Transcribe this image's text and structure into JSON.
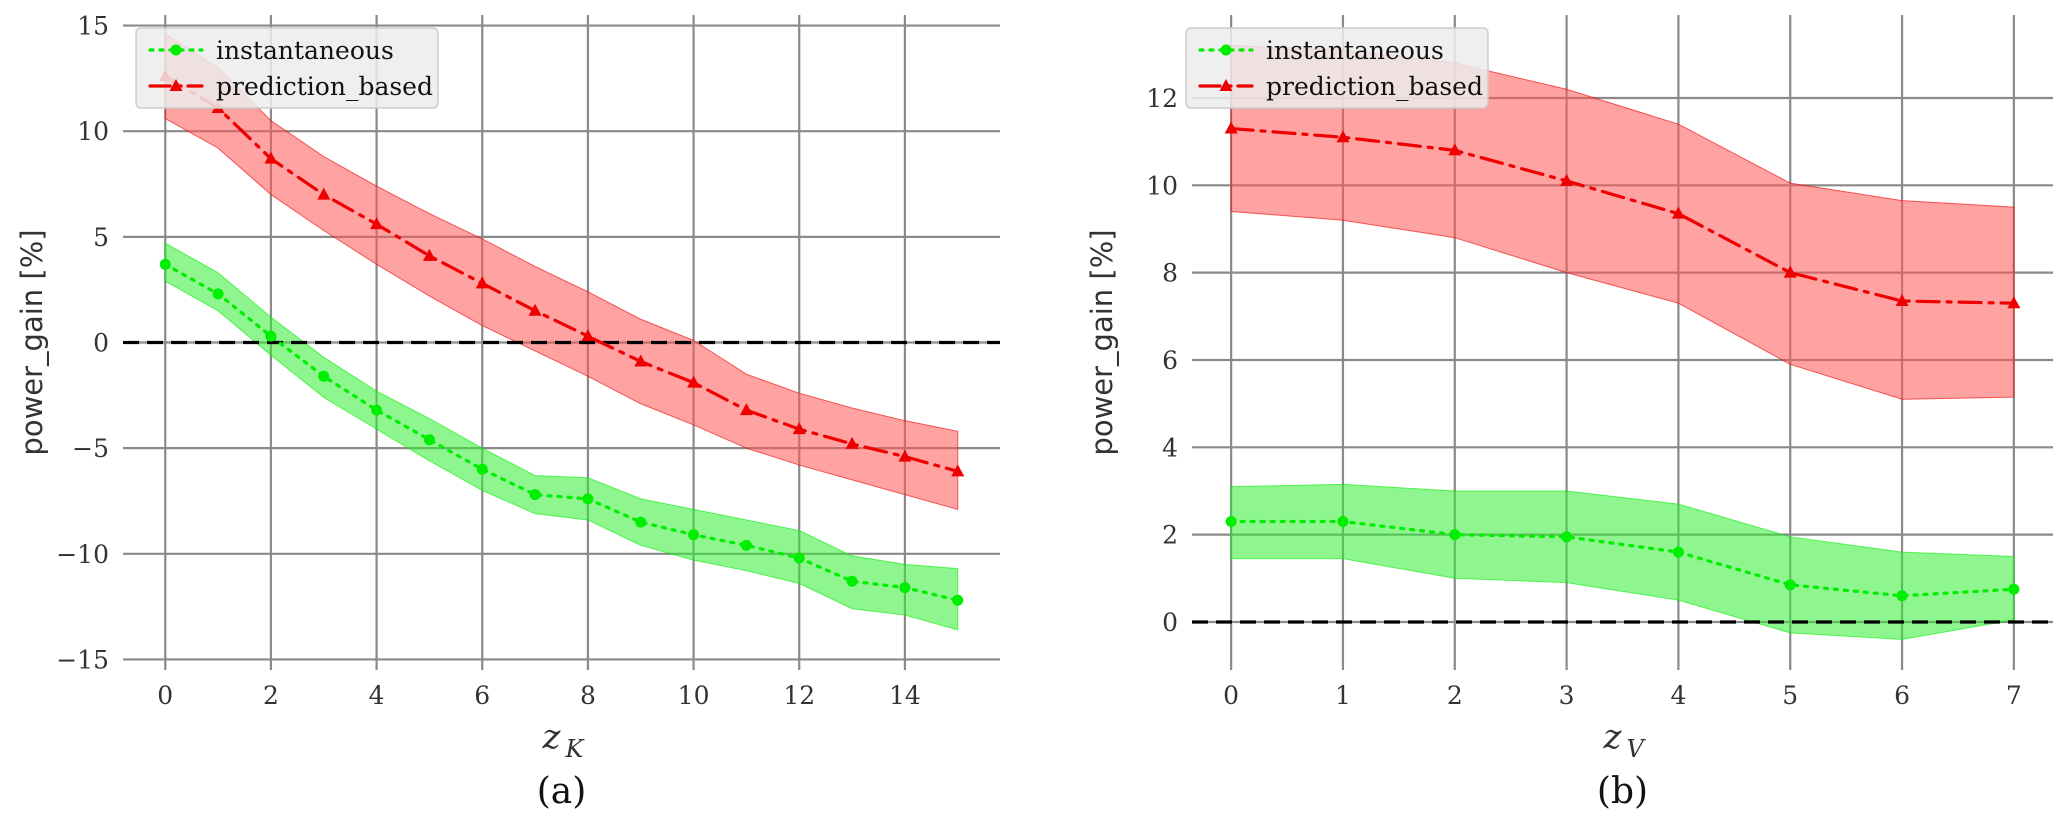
{
  "chart_data": [
    {
      "type": "line",
      "caption": "(a)",
      "xlabel": "z",
      "xlabel_subscript": "K",
      "ylabel": "power_gain [%]",
      "xlim": [
        -0.8,
        15.8
      ],
      "ylim": [
        -15.5,
        15.5
      ],
      "xticks": [
        0,
        2,
        4,
        6,
        8,
        10,
        12,
        14
      ],
      "yticks": [
        -15,
        -10,
        -5,
        0,
        5,
        10,
        15
      ],
      "ytick_labels": [
        "−15",
        "−10",
        "−5",
        "0",
        "5",
        "10",
        "15"
      ],
      "grid": true,
      "reference_line": 0,
      "legend": "top-left",
      "x": [
        0,
        1,
        2,
        3,
        4,
        5,
        6,
        7,
        8,
        9,
        10,
        11,
        12,
        13,
        14,
        15
      ],
      "series": [
        {
          "name": "instantaneous",
          "color": "#00ee00",
          "band_color": "#33ee33",
          "style": "dotted",
          "marker": "circle",
          "values": [
            3.7,
            2.3,
            0.3,
            -1.6,
            -3.2,
            -4.6,
            -6.0,
            -7.2,
            -7.4,
            -8.5,
            -9.1,
            -9.6,
            -10.2,
            -11.3,
            -11.6,
            -12.2
          ],
          "lower": [
            2.9,
            1.5,
            -0.6,
            -2.6,
            -4.1,
            -5.6,
            -7.0,
            -8.1,
            -8.4,
            -9.6,
            -10.3,
            -10.8,
            -11.4,
            -12.6,
            -12.9,
            -13.6
          ],
          "upper": [
            4.7,
            3.3,
            1.2,
            -0.7,
            -2.3,
            -3.6,
            -5.0,
            -6.3,
            -6.4,
            -7.4,
            -7.9,
            -8.4,
            -8.9,
            -10.1,
            -10.5,
            -10.7
          ]
        },
        {
          "name": "prediction_based",
          "color": "#ee0000",
          "band_color": "#ff5555",
          "style": "dashdot",
          "marker": "triangle",
          "values": [
            12.6,
            11.1,
            8.7,
            7.0,
            5.6,
            4.1,
            2.8,
            1.5,
            0.3,
            -0.9,
            -1.9,
            -3.2,
            -4.1,
            -4.8,
            -5.4,
            -6.1
          ],
          "lower": [
            10.6,
            9.2,
            7.0,
            5.3,
            3.7,
            2.2,
            0.8,
            -0.4,
            -1.6,
            -2.9,
            -3.9,
            -5.0,
            -5.8,
            -6.5,
            -7.2,
            -7.9
          ],
          "upper": [
            14.6,
            13.0,
            10.5,
            8.8,
            7.4,
            6.1,
            4.9,
            3.6,
            2.4,
            1.1,
            0.1,
            -1.5,
            -2.4,
            -3.1,
            -3.7,
            -4.2
          ]
        }
      ]
    },
    {
      "type": "line",
      "caption": "(b)",
      "xlabel": "z",
      "xlabel_subscript": "V",
      "ylabel": "power_gain [%]",
      "xlim": [
        -0.35,
        7.35
      ],
      "ylim": [
        -1.1,
        13.9
      ],
      "xticks": [
        0,
        1,
        2,
        3,
        4,
        5,
        6,
        7
      ],
      "yticks": [
        0,
        2,
        4,
        6,
        8,
        10,
        12
      ],
      "ytick_labels": [
        "0",
        "2",
        "4",
        "6",
        "8",
        "10",
        "12"
      ],
      "grid": true,
      "reference_line": 0,
      "legend": "top-left",
      "x": [
        0,
        1,
        2,
        3,
        4,
        5,
        6,
        7
      ],
      "series": [
        {
          "name": "instantaneous",
          "color": "#00ee00",
          "band_color": "#33ee33",
          "style": "dotted",
          "marker": "circle",
          "values": [
            2.3,
            2.3,
            2.0,
            1.95,
            1.6,
            0.85,
            0.6,
            0.75
          ],
          "lower": [
            1.45,
            1.45,
            1.0,
            0.9,
            0.5,
            -0.25,
            -0.4,
            0.05
          ],
          "upper": [
            3.1,
            3.15,
            3.0,
            3.0,
            2.7,
            1.95,
            1.6,
            1.5
          ]
        },
        {
          "name": "prediction_based",
          "color": "#ee0000",
          "band_color": "#ff5555",
          "style": "dashdot",
          "marker": "triangle",
          "values": [
            11.3,
            11.1,
            10.8,
            10.1,
            9.35,
            8.0,
            7.35,
            7.3
          ],
          "lower": [
            9.4,
            9.2,
            8.8,
            8.0,
            7.3,
            5.9,
            5.1,
            5.15
          ],
          "upper": [
            13.2,
            13.1,
            12.8,
            12.2,
            11.4,
            10.05,
            9.65,
            9.5
          ]
        }
      ]
    }
  ]
}
